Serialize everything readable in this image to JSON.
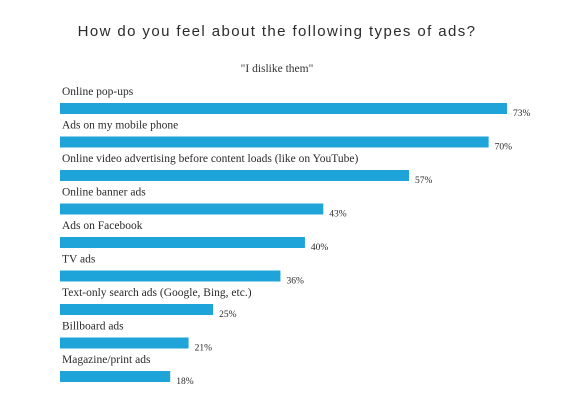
{
  "chart_data": {
    "type": "bar",
    "orientation": "horizontal",
    "title": "How do you feel about the following types of ads?",
    "subtitle": "\"I dislike them\"",
    "categories": [
      "Online pop-ups",
      "Ads on my mobile phone",
      "Online video advertising before content loads (like on YouTube)",
      "Online banner ads",
      "Ads on Facebook",
      "TV ads",
      "Text-only search ads (Google, Bing, etc.)",
      "Billboard ads",
      "Magazine/print ads"
    ],
    "values": [
      73,
      70,
      57,
      43,
      40,
      36,
      25,
      21,
      18
    ],
    "value_labels": [
      "73%",
      "70%",
      "57%",
      "43%",
      "40%",
      "36%",
      "25%",
      "21%",
      "18%"
    ],
    "bar_color": "#1ea4d9",
    "xlim": [
      0,
      100
    ],
    "grid": false,
    "legend": "none"
  }
}
